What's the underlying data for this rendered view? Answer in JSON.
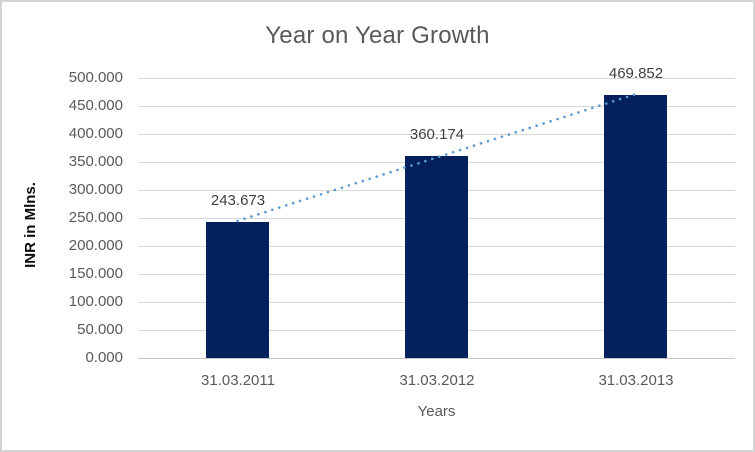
{
  "chart_data": {
    "type": "bar",
    "title": "Year on Year Growth",
    "categories": [
      "31.03.2011",
      "31.03.2012",
      "31.03.2013"
    ],
    "values": [
      243.673,
      360.174,
      469.852
    ],
    "value_labels": [
      "243.673",
      "360.174",
      "469.852"
    ],
    "xlabel": "Years",
    "ylabel": "INR in Mlns.",
    "ylim": [
      0,
      500
    ],
    "ytick_step": 50,
    "ytick_labels_top_to_bottom": [
      "500.000",
      "450.000",
      "400.000",
      "350.000",
      "300.000",
      "250.000",
      "200.000",
      "150.000",
      "100.000",
      "50.000",
      "0.000"
    ],
    "grid": "horizontal",
    "legend": "none",
    "trendline": {
      "type": "linear",
      "style": "dotted",
      "start_value": 244.8,
      "end_value": 471.0
    },
    "colors": {
      "bar": "#04215e",
      "trendline": "#5b9bd5",
      "gridline": "#d9d9d9",
      "axis_line": "#c6c6c6",
      "title_text": "#595959",
      "tick_text": "#595959",
      "data_label_text": "#404040",
      "y_axis_title_text": "#0d0d0d",
      "frame_border": "#d4d4d4"
    }
  }
}
